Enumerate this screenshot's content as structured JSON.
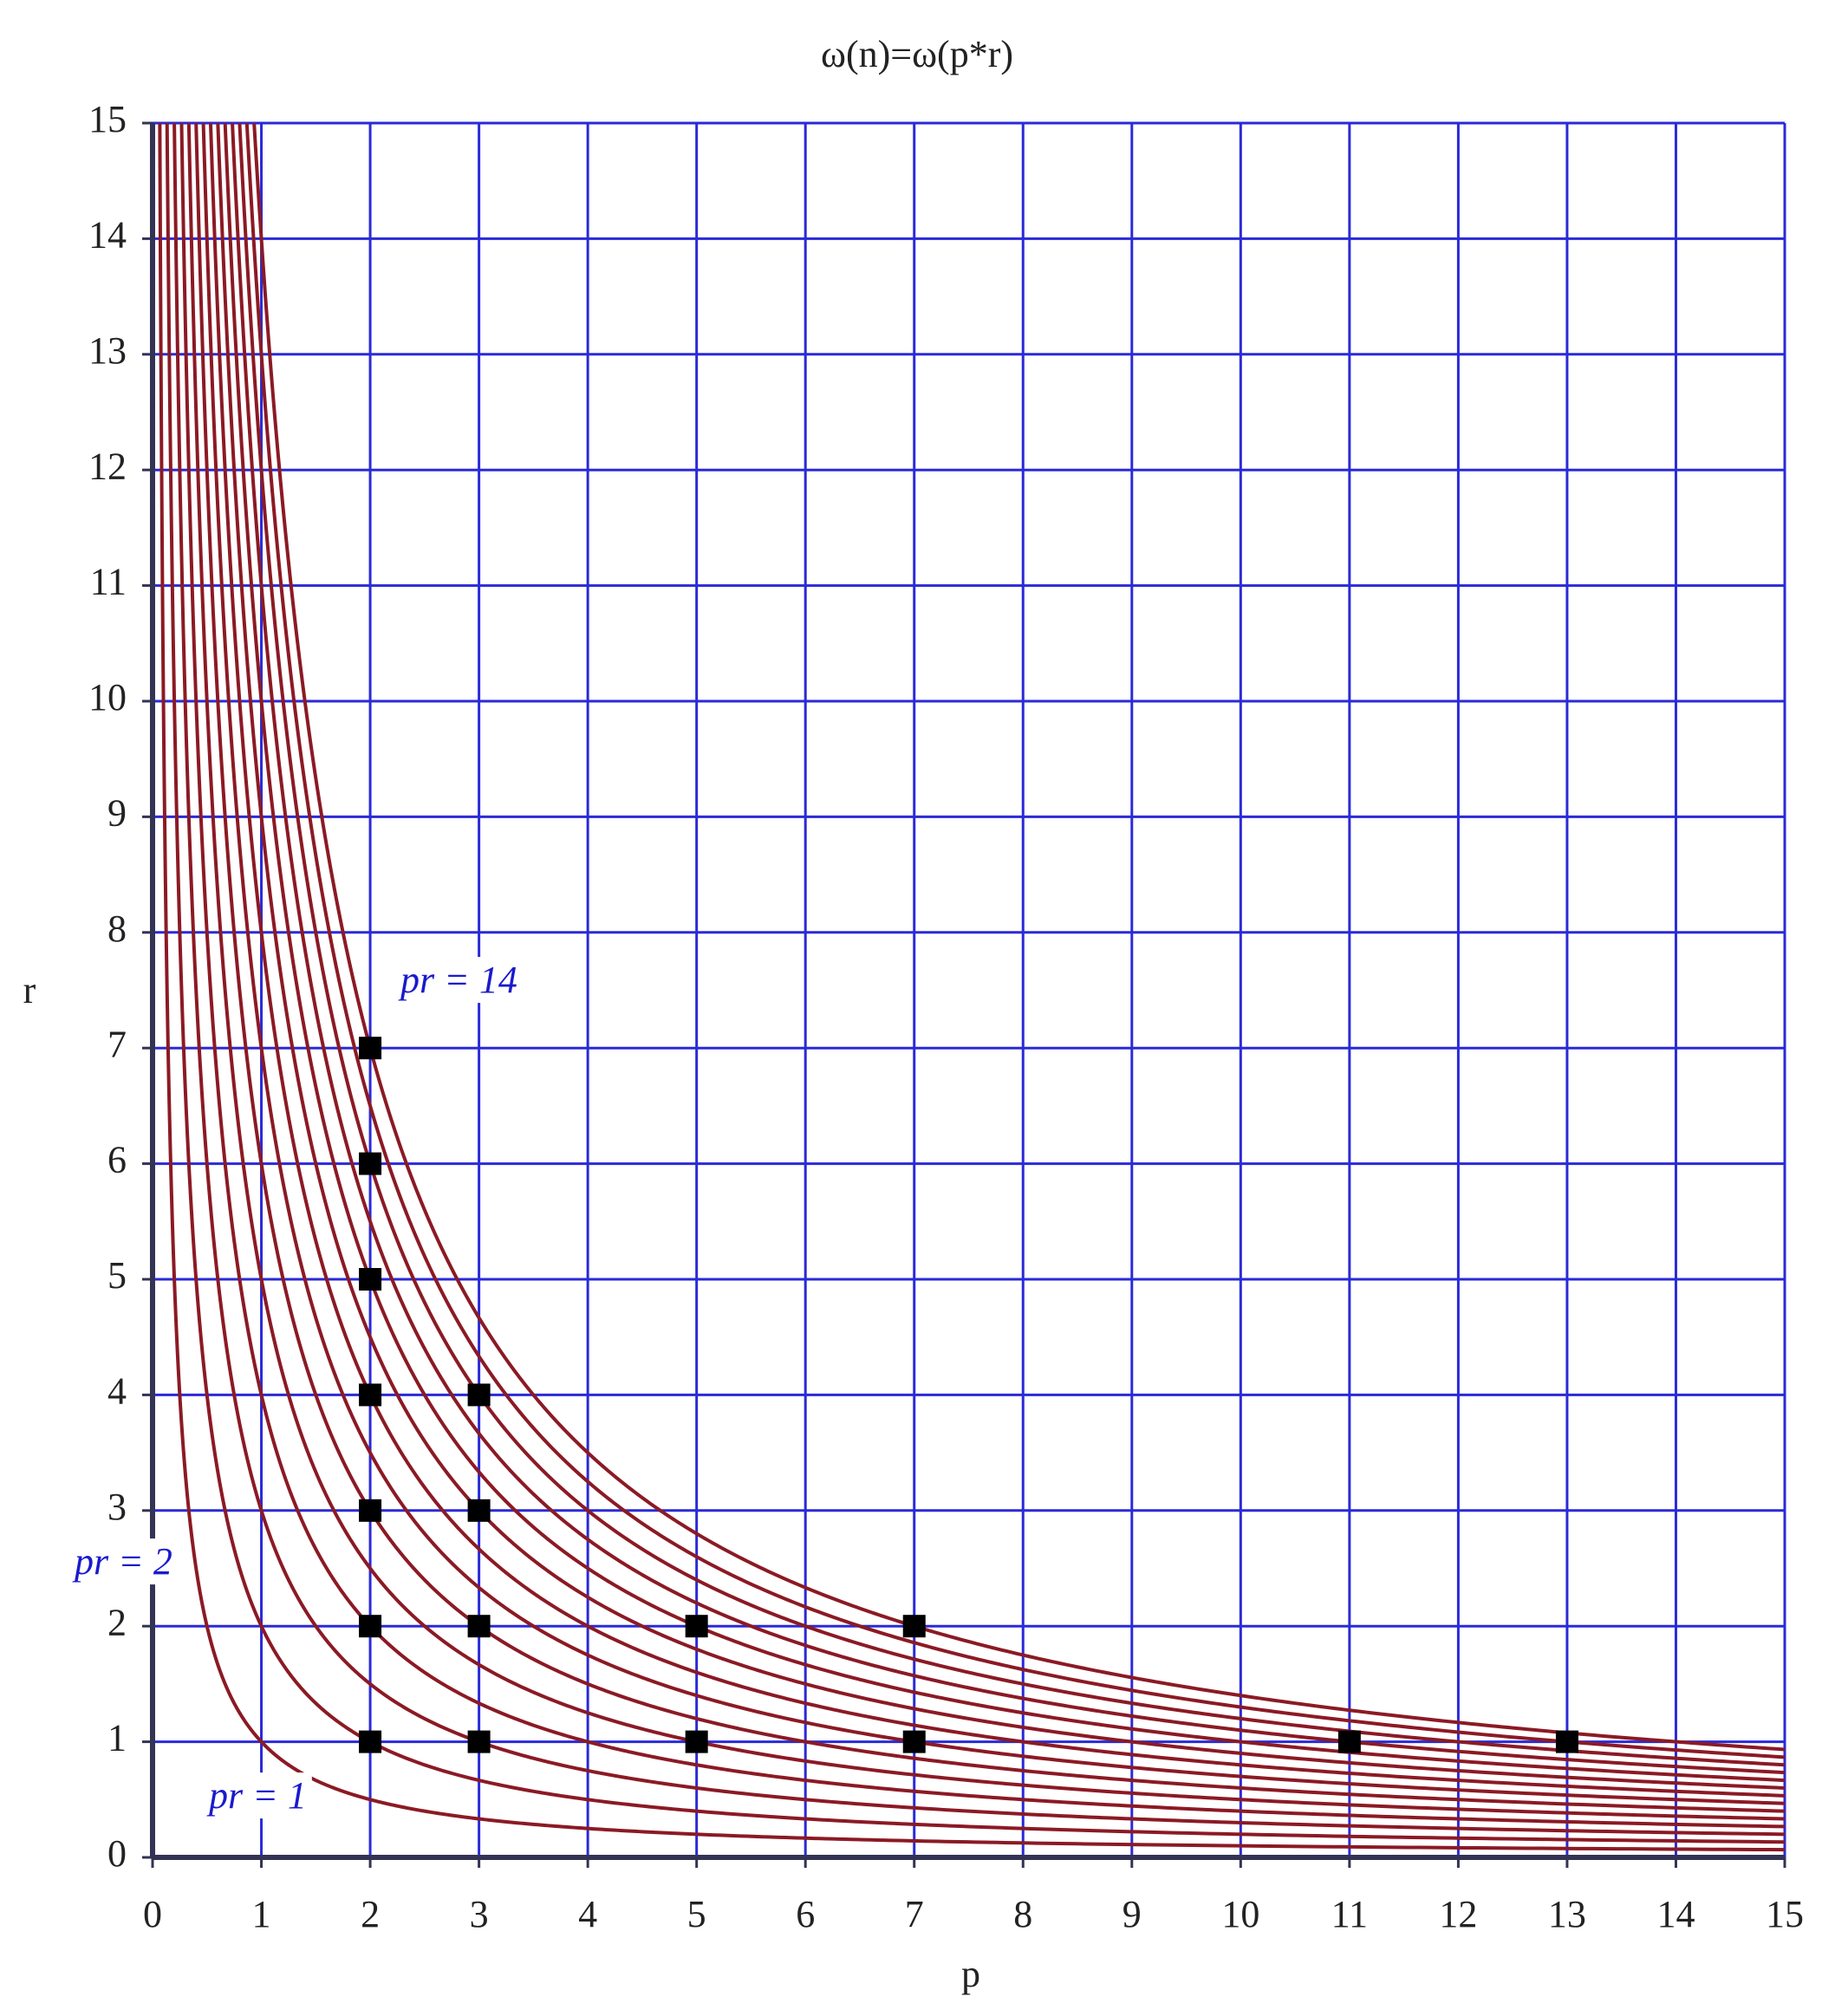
{
  "chart_data": {
    "type": "scatter",
    "title": "ω(n)=ω(p*r)",
    "x_label": "p",
    "y_label": "r",
    "x": [
      2,
      2,
      2,
      2,
      2,
      2,
      2,
      3,
      3,
      3,
      3,
      5,
      5,
      7,
      7,
      11,
      13
    ],
    "y": [
      1,
      2,
      3,
      4,
      5,
      6,
      7,
      1,
      2,
      3,
      4,
      1,
      2,
      1,
      2,
      1,
      1
    ],
    "marker_color": "#000000",
    "hyperbola_products": [
      1,
      2,
      3,
      4,
      5,
      6,
      7,
      8,
      9,
      10,
      11,
      12,
      13,
      14
    ],
    "curve_color": "#8b1a24",
    "grid_color": "#2a2ad8",
    "grid": true,
    "annotations": [
      "pr = 14",
      "pr = 2",
      "pr = 1"
    ],
    "xlim": [
      0,
      15
    ],
    "ylim": [
      0,
      15
    ],
    "xticks": [
      0,
      1,
      2,
      3,
      4,
      5,
      6,
      7,
      8,
      9,
      10,
      11,
      12,
      13,
      14,
      15
    ],
    "yticks": [
      0,
      1,
      2,
      3,
      4,
      5,
      6,
      7,
      8,
      9,
      10,
      11,
      12,
      13,
      14,
      15
    ]
  }
}
